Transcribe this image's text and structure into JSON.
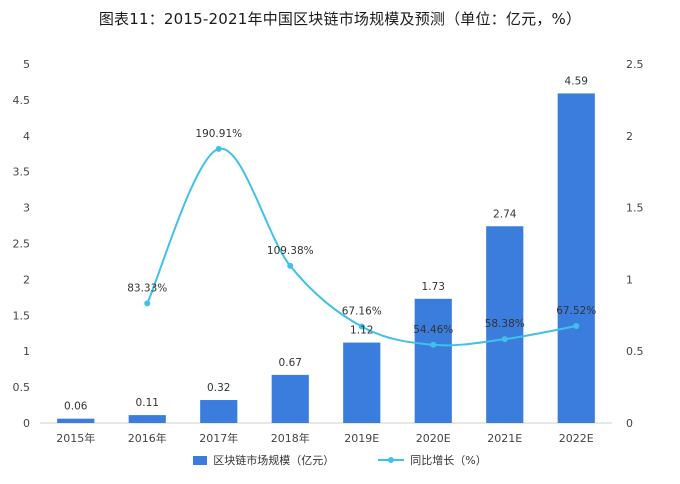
{
  "chart_data": {
    "type": "bar",
    "title": "图表11：2015-2021年中国区块链市场规模及预测（单位：亿元，%）",
    "categories": [
      "2015年",
      "2016年",
      "2017年",
      "2018年",
      "2019E",
      "2020E",
      "2021E",
      "2022E"
    ],
    "series": [
      {
        "name": "区块链市场规模（亿元）",
        "type": "bar",
        "axis": "left",
        "values": [
          0.06,
          0.11,
          0.32,
          0.67,
          1.12,
          1.73,
          2.74,
          4.59
        ],
        "labels": [
          "0.06",
          "0.11",
          "0.32",
          "0.67",
          "1.12",
          "1.73",
          "2.74",
          "4.59"
        ],
        "color": "#3b7ddd"
      },
      {
        "name": "同比增长（%）",
        "type": "line",
        "axis": "right",
        "values": [
          null,
          83.33,
          190.91,
          109.38,
          67.16,
          54.46,
          58.38,
          67.52
        ],
        "labels": [
          "",
          "83.33%",
          "190.91%",
          "109.38%",
          "67.16%",
          "54.46%",
          "58.38%",
          "67.52%"
        ],
        "color": "#3fc1e8"
      }
    ],
    "y_left": {
      "ylim": [
        0,
        5
      ],
      "ticks": [
        "0",
        "0.5",
        "1",
        "1.5",
        "2",
        "2.5",
        "3",
        "3.5",
        "4",
        "4.5",
        "5"
      ]
    },
    "y_right": {
      "ylim": [
        0,
        2.5
      ],
      "ticks": [
        "0",
        "0.5",
        "1",
        "1.5",
        "2",
        "2.5"
      ]
    },
    "grid": false,
    "legend": "bottom"
  }
}
